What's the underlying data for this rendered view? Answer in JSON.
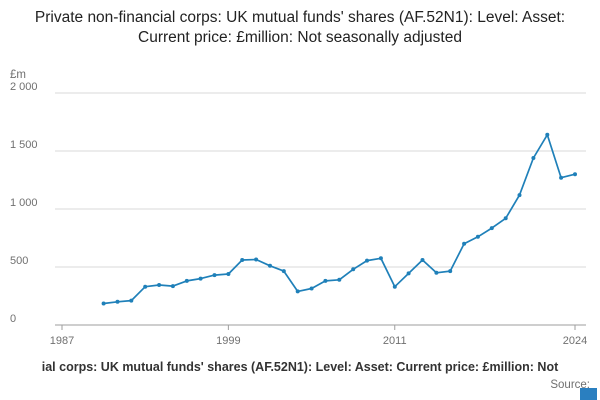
{
  "title": "Private non-financial corps: UK mutual funds' shares (AF.52N1): Level: Asset: Current price: £million: Not seasonally adjusted",
  "chart_data": {
    "type": "line",
    "title": "Private non-financial corps: UK mutual funds' shares (AF.52N1): Level: Asset: Current price: £million: Not seasonally adjusted",
    "ylabel": "£m",
    "xlabel": "",
    "xlim": [
      1987,
      2024
    ],
    "ylim": [
      0,
      2000
    ],
    "grid": true,
    "legend": "none",
    "xticks": [
      1987,
      1999,
      2011,
      2024
    ],
    "xtick_labels": [
      "1987",
      "1999",
      "2011",
      "2024"
    ],
    "yticks": [
      0,
      500,
      1000,
      1500,
      2000
    ],
    "ytick_labels": [
      "0",
      "500",
      "1 000",
      "1 500",
      "2 000"
    ],
    "x": [
      1990,
      1991,
      1992,
      1993,
      1994,
      1995,
      1996,
      1997,
      1998,
      1999,
      2000,
      2001,
      2002,
      2003,
      2004,
      2005,
      2006,
      2007,
      2008,
      2009,
      2010,
      2011,
      2012,
      2013,
      2014,
      2015,
      2016,
      2017,
      2018,
      2019,
      2020,
      2021,
      2022,
      2023,
      2024
    ],
    "series": [
      {
        "name": "UK mutual funds' shares (AF.52N1), £million",
        "values": [
          185,
          200,
          210,
          330,
          345,
          335,
          380,
          400,
          430,
          440,
          560,
          565,
          510,
          465,
          290,
          315,
          380,
          390,
          480,
          555,
          575,
          330,
          445,
          560,
          450,
          465,
          700,
          760,
          835,
          920,
          1120,
          1440,
          1640,
          1270,
          1300
        ]
      }
    ]
  },
  "footer": {
    "caption": "ial corps: UK mutual funds' shares (AF.52N1): Level: Asset: Current price: £million: Not",
    "source_label": "Source:"
  },
  "colors": {
    "line": "#1f80b9",
    "marker": "#1f80b9",
    "grid": "#d9d9d9",
    "axis": "#9e9e9e",
    "tick_text": "#707070",
    "title_text": "#222222",
    "logo_square": "#2a7fc0"
  }
}
